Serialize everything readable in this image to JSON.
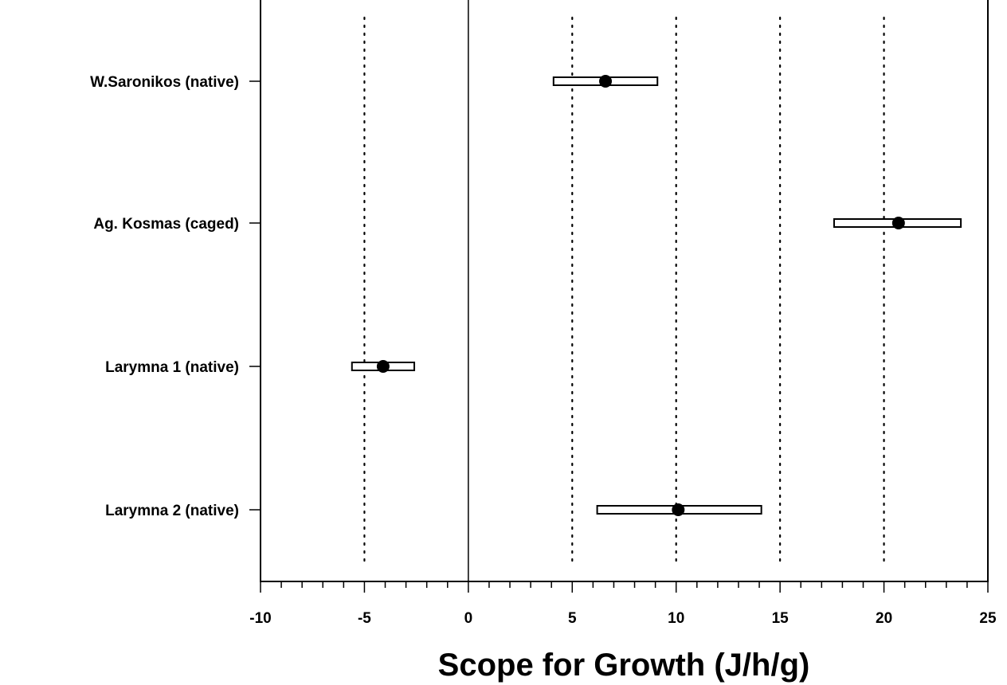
{
  "chart_data": {
    "type": "scatter",
    "orientation": "horizontal",
    "title": "",
    "xlabel": "Scope for Growth (J/h/g)",
    "ylabel": "",
    "xlim": [
      -10,
      25
    ],
    "xticks": [
      -10,
      -5,
      0,
      5,
      10,
      15,
      20,
      25
    ],
    "xtick_labels": [
      "-10",
      "-5",
      "0",
      "5",
      "10",
      "15",
      "20",
      "25"
    ],
    "grid": "vertical dotted lines at -5, 5, 10, 15, 20",
    "zero_line": true,
    "legend": "none",
    "categories": [
      "W.Saronikos (native)",
      "Ag. Kosmas (caged)",
      "Larymna 1 (native)",
      "Larymna 2 (native)"
    ],
    "points": [
      {
        "category": "W.Saronikos (native)",
        "mean": 6.6,
        "low": 4.1,
        "high": 9.1
      },
      {
        "category": "Ag. Kosmas (caged)",
        "mean": 20.7,
        "low": 17.6,
        "high": 23.7
      },
      {
        "category": "Larymna 1 (native)",
        "mean": -4.1,
        "low": -5.6,
        "high": -2.6
      },
      {
        "category": "Larymna 2 (native)",
        "mean": 10.1,
        "low": 6.2,
        "high": 14.1
      }
    ]
  }
}
